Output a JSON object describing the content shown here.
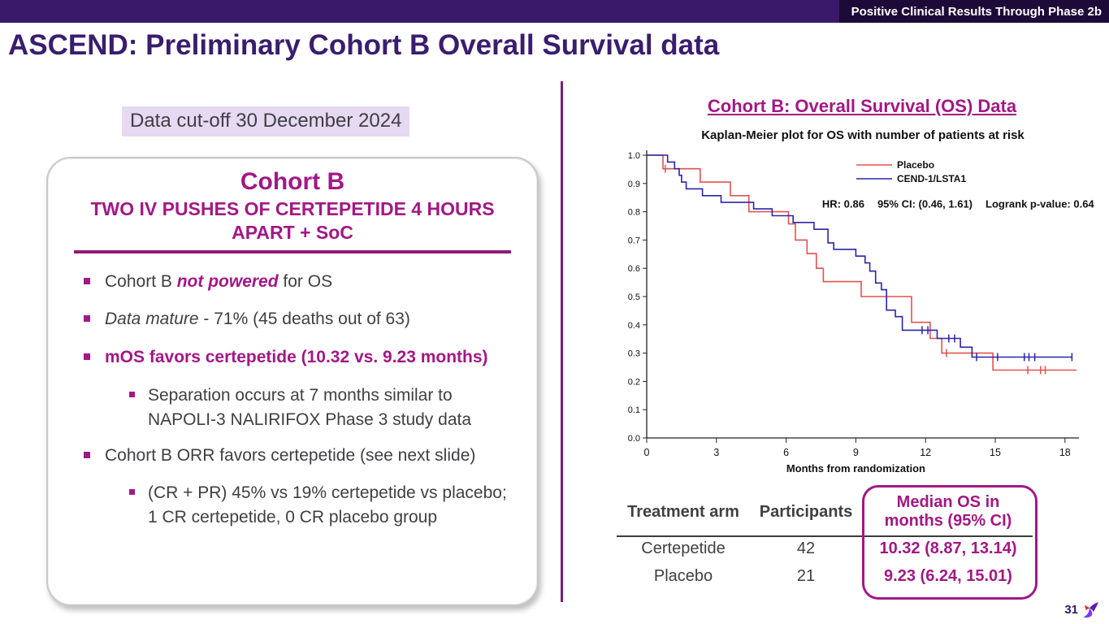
{
  "header": {
    "banner": "Positive Clinical Results Through Phase 2b",
    "title": "ASCEND: Preliminary Cohort B Overall Survival data"
  },
  "left": {
    "data_cutoff": "Data cut-off 30 December 2024",
    "card": {
      "heading": "Cohort B",
      "subheading": "TWO IV PUSHES OF CERTEPETIDE 4 HOURS APART + SoC",
      "bullets": {
        "b1": {
          "pre": "Cohort B ",
          "emph": "not powered",
          "post": " for OS"
        },
        "b2": {
          "emph": "Data mature",
          "post": " - 71% (45 deaths out of 63)"
        },
        "b3": {
          "text": "mOS favors certepetide (10.32 vs. 9.23 months)"
        },
        "b3_sub": {
          "text": "Separation occurs at 7 months similar to NAPOLI-3 NALIRIFOX Phase 3 study data"
        },
        "b4": {
          "text": "Cohort B ORR favors certepetide (see next slide)"
        },
        "b4_sub": {
          "text": "(CR + PR) 45% vs 19% certepetide vs placebo; 1 CR certepetide, 0 CR placebo group"
        }
      }
    }
  },
  "right": {
    "section_title": "Cohort B: Overall Survival (OS) Data",
    "table": {
      "headers": [
        "Treatment arm",
        "Participants",
        "Median OS in months (95% CI)"
      ],
      "rows": [
        [
          "Certepetide",
          "42",
          "10.32 (8.87, 13.14)"
        ],
        [
          "Placebo",
          "21",
          "9.23 (6.24, 15.01)"
        ]
      ]
    }
  },
  "footer": {
    "page_number": "31",
    "logo": "hummingbird-logo"
  },
  "colors": {
    "accent_magenta": "#A21885",
    "title_purple": "#3A1D6E",
    "topbar_purple": "#3A196B",
    "topbar_dark": "#1E0A38",
    "divider_purple": "#7A1B85",
    "body_text": "#3F3F44",
    "cutoff_highlight": "#E6D9F2",
    "placebo_red": "#E0534E",
    "cend_blue": "#2B25A8"
  },
  "chart_data": {
    "type": "line",
    "subtype": "kaplan-meier-step",
    "title": "Kaplan-Meier plot for OS with number of patients at risk",
    "xlabel": "Months from randomization",
    "ylabel": "",
    "xlim": [
      0,
      18.6
    ],
    "ylim": [
      0,
      1.0
    ],
    "xticks": [
      0,
      3,
      6,
      9,
      12,
      15,
      18
    ],
    "yticks": [
      0.0,
      0.1,
      0.2,
      0.3,
      0.4,
      0.5,
      0.6,
      0.7,
      0.8,
      0.9,
      1.0
    ],
    "grid": false,
    "legend_position": "top-right",
    "annotation_parts": [
      "HR: 0.86",
      "95% CI: (0.46, 1.61)",
      "Logrank p-value:  0.64"
    ],
    "series": [
      {
        "name": "Placebo",
        "color": "#E0534E",
        "end": 18.5,
        "steps": [
          [
            0,
            1.0
          ],
          [
            0.7,
            0.952
          ],
          [
            2.3,
            0.905
          ],
          [
            3.6,
            0.857
          ],
          [
            4.4,
            0.8
          ],
          [
            6.1,
            0.757
          ],
          [
            6.4,
            0.7
          ],
          [
            6.9,
            0.652
          ],
          [
            7.3,
            0.6
          ],
          [
            7.6,
            0.553
          ],
          [
            9.23,
            0.5
          ],
          [
            11.4,
            0.409
          ],
          [
            12.2,
            0.352
          ],
          [
            12.7,
            0.3
          ],
          [
            14.9,
            0.24
          ]
        ],
        "censors": [
          [
            0.8,
            0.952
          ],
          [
            12.9,
            0.3
          ],
          [
            16.4,
            0.24
          ],
          [
            16.95,
            0.24
          ],
          [
            17.15,
            0.24
          ]
        ],
        "median_os": 9.23
      },
      {
        "name": "CEND-1/LSTA1",
        "color": "#2B25A8",
        "end": 18.3,
        "steps": [
          [
            0,
            1.0
          ],
          [
            0.9,
            0.976
          ],
          [
            1.2,
            0.952
          ],
          [
            1.4,
            0.929
          ],
          [
            1.5,
            0.905
          ],
          [
            1.7,
            0.881
          ],
          [
            2.4,
            0.857
          ],
          [
            3.2,
            0.833
          ],
          [
            4.6,
            0.81
          ],
          [
            5.4,
            0.786
          ],
          [
            6.3,
            0.762
          ],
          [
            7.2,
            0.738
          ],
          [
            7.8,
            0.69
          ],
          [
            8.05,
            0.667
          ],
          [
            9.0,
            0.643
          ],
          [
            9.4,
            0.619
          ],
          [
            9.6,
            0.59
          ],
          [
            9.85,
            0.548
          ],
          [
            10.1,
            0.524
          ],
          [
            10.32,
            0.452
          ],
          [
            10.7,
            0.429
          ],
          [
            11.0,
            0.381
          ],
          [
            12.5,
            0.352
          ],
          [
            13.5,
            0.321
          ],
          [
            14.0,
            0.286
          ]
        ],
        "censors": [
          [
            11.85,
            0.381
          ],
          [
            12.1,
            0.381
          ],
          [
            13.0,
            0.352
          ],
          [
            13.25,
            0.352
          ],
          [
            14.2,
            0.286
          ],
          [
            15.1,
            0.286
          ],
          [
            16.25,
            0.286
          ],
          [
            16.45,
            0.286
          ],
          [
            16.7,
            0.286
          ],
          [
            18.3,
            0.286
          ]
        ],
        "median_os": 10.32
      }
    ]
  }
}
